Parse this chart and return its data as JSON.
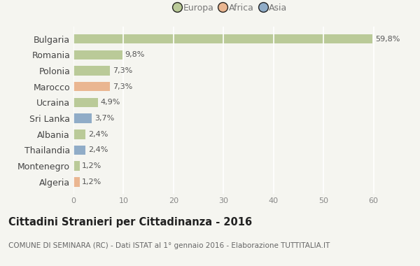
{
  "categories": [
    "Bulgaria",
    "Romania",
    "Polonia",
    "Marocco",
    "Ucraina",
    "Sri Lanka",
    "Albania",
    "Thailandia",
    "Montenegro",
    "Algeria"
  ],
  "values": [
    59.8,
    9.8,
    7.3,
    7.3,
    4.9,
    3.7,
    2.4,
    2.4,
    1.2,
    1.2
  ],
  "labels": [
    "59,8%",
    "9,8%",
    "7,3%",
    "7,3%",
    "4,9%",
    "3,7%",
    "2,4%",
    "2,4%",
    "1,2%",
    "1,2%"
  ],
  "colors": [
    "#aec185",
    "#aec185",
    "#aec185",
    "#e8a87c",
    "#aec185",
    "#7a9cbf",
    "#aec185",
    "#7a9cbf",
    "#aec185",
    "#e8a87c"
  ],
  "legend_labels": [
    "Europa",
    "Africa",
    "Asia"
  ],
  "legend_colors": [
    "#aec185",
    "#e8a87c",
    "#7a9cbf"
  ],
  "xlim": [
    0,
    63
  ],
  "xticks": [
    0,
    10,
    20,
    30,
    40,
    50,
    60
  ],
  "title": "Cittadini Stranieri per Cittadinanza - 2016",
  "subtitle": "COMUNE DI SEMINARA (RC) - Dati ISTAT al 1° gennaio 2016 - Elaborazione TUTTITALIA.IT",
  "background_color": "#f5f5f0",
  "grid_color": "#ffffff",
  "bar_alpha": 0.82
}
